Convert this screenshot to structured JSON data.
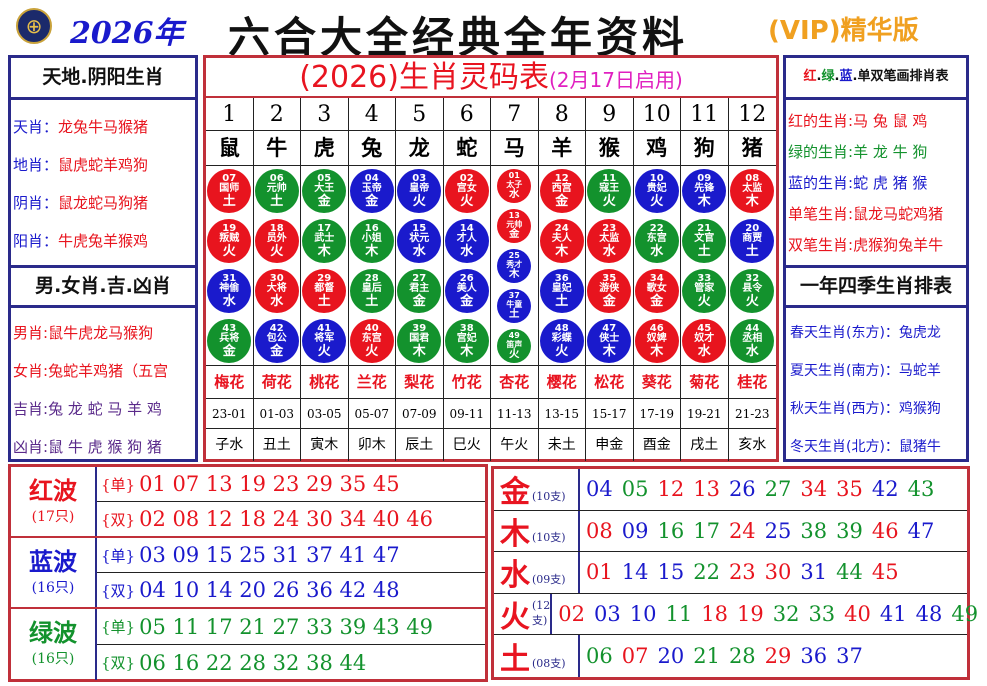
{
  "header": {
    "year": "2026年",
    "title": "六合大全经典全年资料",
    "vip": "(VIP)精华版",
    "logo_icon": "lottery-emblem"
  },
  "colors": {
    "red": "#e8141e",
    "blue": "#1a1acc",
    "green": "#13922d",
    "purple": "#5a2a8a"
  },
  "left": {
    "head1": "天地.阴阳生肖",
    "rows1": [
      {
        "label": "天肖：",
        "value": "龙兔牛马猴猪"
      },
      {
        "label": "地肖：",
        "value": "鼠虎蛇羊鸡狗"
      },
      {
        "label": "阴肖：",
        "value": "鼠龙蛇马狗猪"
      },
      {
        "label": "阳肖：",
        "value": "牛虎兔羊猴鸡"
      }
    ],
    "head2": "男.女肖.吉.凶肖",
    "rows2": [
      {
        "label": "男肖:",
        "value": "鼠牛虎龙马猴狗"
      },
      {
        "label": "女肖:",
        "value": "兔蛇羊鸡猪（五宫"
      },
      {
        "label": "吉肖:",
        "value": "兔 龙 蛇 马 羊 鸡"
      },
      {
        "label": "凶肖:",
        "value": "鼠 牛 虎 猴 狗 猪"
      }
    ]
  },
  "right": {
    "head1_parts": [
      "红",
      "绿",
      "蓝",
      "单双笔画排肖表"
    ],
    "rows1": [
      {
        "label": "红的生肖:",
        "value": "马 兔 鼠 鸡",
        "color": "red"
      },
      {
        "label": "绿的生肖:",
        "value": "羊 龙 牛 狗",
        "color": "green"
      },
      {
        "label": "蓝的生肖:",
        "value": "蛇 虎 猪 猴",
        "color": "blue"
      },
      {
        "label": "单笔生肖:",
        "value": "鼠龙马蛇鸡猪",
        "color": "red"
      },
      {
        "label": "双笔生肖:",
        "value": "虎猴狗兔羊牛",
        "color": "red"
      }
    ],
    "head2": "一年四季生肖排表",
    "rows2": [
      "春天生肖(东方)：兔虎龙",
      "夏天生肖(南方)：马蛇羊",
      "秋天生肖(西方)：鸡猴狗",
      "冬天生肖(北方)：鼠猪牛"
    ]
  },
  "center": {
    "title": "(2026)生肖灵码表",
    "subtitle": "(2月17日启用)",
    "numbers": [
      "1",
      "2",
      "3",
      "4",
      "5",
      "6",
      "7",
      "8",
      "9",
      "10",
      "11",
      "12"
    ],
    "zodiac": [
      "鼠",
      "牛",
      "虎",
      "兔",
      "龙",
      "蛇",
      "马",
      "羊",
      "猴",
      "鸡",
      "狗",
      "猪"
    ],
    "balls": [
      [
        [
          "07",
          "国师",
          "土",
          "red"
        ],
        [
          "19",
          "叛贼",
          "火",
          "red"
        ],
        [
          "31",
          "神偷",
          "水",
          "blue"
        ],
        [
          "43",
          "兵将",
          "金",
          "green"
        ]
      ],
      [
        [
          "06",
          "元帅",
          "土",
          "green"
        ],
        [
          "18",
          "员外",
          "火",
          "red"
        ],
        [
          "30",
          "大将",
          "水",
          "red"
        ],
        [
          "42",
          "包公",
          "金",
          "blue"
        ]
      ],
      [
        [
          "05",
          "大王",
          "金",
          "green"
        ],
        [
          "17",
          "武士",
          "木",
          "green"
        ],
        [
          "29",
          "都督",
          "土",
          "red"
        ],
        [
          "41",
          "将军",
          "火",
          "blue"
        ]
      ],
      [
        [
          "04",
          "玉帝",
          "金",
          "blue"
        ],
        [
          "16",
          "小姐",
          "木",
          "green"
        ],
        [
          "28",
          "皇后",
          "土",
          "green"
        ],
        [
          "40",
          "东宫",
          "火",
          "red"
        ]
      ],
      [
        [
          "03",
          "皇帝",
          "火",
          "blue"
        ],
        [
          "15",
          "状元",
          "水",
          "blue"
        ],
        [
          "27",
          "君主",
          "金",
          "green"
        ],
        [
          "39",
          "国君",
          "木",
          "green"
        ]
      ],
      [
        [
          "02",
          "宫女",
          "火",
          "red"
        ],
        [
          "14",
          "才人",
          "水",
          "blue"
        ],
        [
          "26",
          "美人",
          "金",
          "blue"
        ],
        [
          "38",
          "宫妃",
          "木",
          "green"
        ]
      ],
      [
        [
          "01",
          "太子",
          "水",
          "red"
        ],
        [
          "13",
          "元帅",
          "金",
          "red"
        ],
        [
          "25",
          "秀才",
          "木",
          "blue"
        ],
        [
          "37",
          "牛童",
          "土",
          "blue"
        ],
        [
          "49",
          "笛声",
          "火",
          "green"
        ]
      ],
      [
        [
          "12",
          "西宫",
          "金",
          "red"
        ],
        [
          "24",
          "夫人",
          "木",
          "red"
        ],
        [
          "36",
          "皇妃",
          "土",
          "blue"
        ],
        [
          "48",
          "彩蝶",
          "火",
          "blue"
        ]
      ],
      [
        [
          "11",
          "寇王",
          "火",
          "green"
        ],
        [
          "23",
          "太监",
          "水",
          "red"
        ],
        [
          "35",
          "游侠",
          "金",
          "red"
        ],
        [
          "47",
          "侠士",
          "木",
          "blue"
        ]
      ],
      [
        [
          "10",
          "贵妃",
          "火",
          "blue"
        ],
        [
          "22",
          "东宫",
          "水",
          "green"
        ],
        [
          "34",
          "歌女",
          "金",
          "red"
        ],
        [
          "46",
          "奴婢",
          "木",
          "red"
        ]
      ],
      [
        [
          "09",
          "先锋",
          "木",
          "blue"
        ],
        [
          "21",
          "文官",
          "土",
          "green"
        ],
        [
          "33",
          "管家",
          "火",
          "green"
        ],
        [
          "45",
          "奴才",
          "水",
          "red"
        ]
      ],
      [
        [
          "08",
          "太监",
          "木",
          "red"
        ],
        [
          "20",
          "商贾",
          "土",
          "blue"
        ],
        [
          "32",
          "县令",
          "火",
          "green"
        ],
        [
          "44",
          "丞相",
          "水",
          "green"
        ]
      ]
    ],
    "flowers": [
      "梅花",
      "荷花",
      "桃花",
      "兰花",
      "梨花",
      "竹花",
      "杏花",
      "樱花",
      "松花",
      "葵花",
      "菊花",
      "桂花"
    ],
    "times": [
      "23-01",
      "01-03",
      "03-05",
      "05-07",
      "07-09",
      "09-11",
      "11-13",
      "13-15",
      "15-17",
      "17-19",
      "19-21",
      "21-23"
    ],
    "branches": [
      "子水",
      "丑土",
      "寅木",
      "卯木",
      "辰土",
      "巳火",
      "午火",
      "未土",
      "申金",
      "酉金",
      "戌土",
      "亥水"
    ]
  },
  "waves": [
    {
      "name": "红波",
      "count": "(17只)",
      "color": "red",
      "odd_tag": "{单}",
      "even_tag": "{双}",
      "odd": [
        "01",
        "07",
        "13",
        "19",
        "23",
        "29",
        "35",
        "45"
      ],
      "even": [
        "02",
        "08",
        "12",
        "18",
        "24",
        "30",
        "34",
        "40",
        "46"
      ]
    },
    {
      "name": "蓝波",
      "count": "(16只)",
      "color": "blue",
      "odd_tag": "{单}",
      "even_tag": "{双}",
      "odd": [
        "03",
        "09",
        "15",
        "25",
        "31",
        "37",
        "41",
        "47"
      ],
      "even": [
        "04",
        "10",
        "14",
        "20",
        "26",
        "36",
        "42",
        "48"
      ]
    },
    {
      "name": "绿波",
      "count": "(16只)",
      "color": "green",
      "odd_tag": "{单}",
      "even_tag": "{双}",
      "odd": [
        "05",
        "11",
        "17",
        "21",
        "27",
        "33",
        "39",
        "43",
        "49"
      ],
      "even": [
        "06",
        "16",
        "22",
        "28",
        "32",
        "38",
        "44"
      ]
    }
  ],
  "elements": [
    {
      "name": "金",
      "count": "(10支)",
      "numbers": [
        "04",
        "05",
        "12",
        "13",
        "26",
        "27",
        "34",
        "35",
        "42",
        "43"
      ]
    },
    {
      "name": "木",
      "count": "(10支)",
      "numbers": [
        "08",
        "09",
        "16",
        "17",
        "24",
        "25",
        "38",
        "39",
        "46",
        "47"
      ]
    },
    {
      "name": "水",
      "count": "(09支)",
      "numbers": [
        "01",
        "14",
        "15",
        "22",
        "23",
        "30",
        "31",
        "44",
        "45"
      ]
    },
    {
      "name": "火",
      "count": "(12支)",
      "numbers": [
        "02",
        "03",
        "10",
        "11",
        "18",
        "19",
        "32",
        "33",
        "40",
        "41",
        "48",
        "49"
      ]
    },
    {
      "name": "土",
      "count": "(08支)",
      "numbers": [
        "06",
        "07",
        "20",
        "21",
        "28",
        "29",
        "36",
        "37"
      ]
    }
  ]
}
